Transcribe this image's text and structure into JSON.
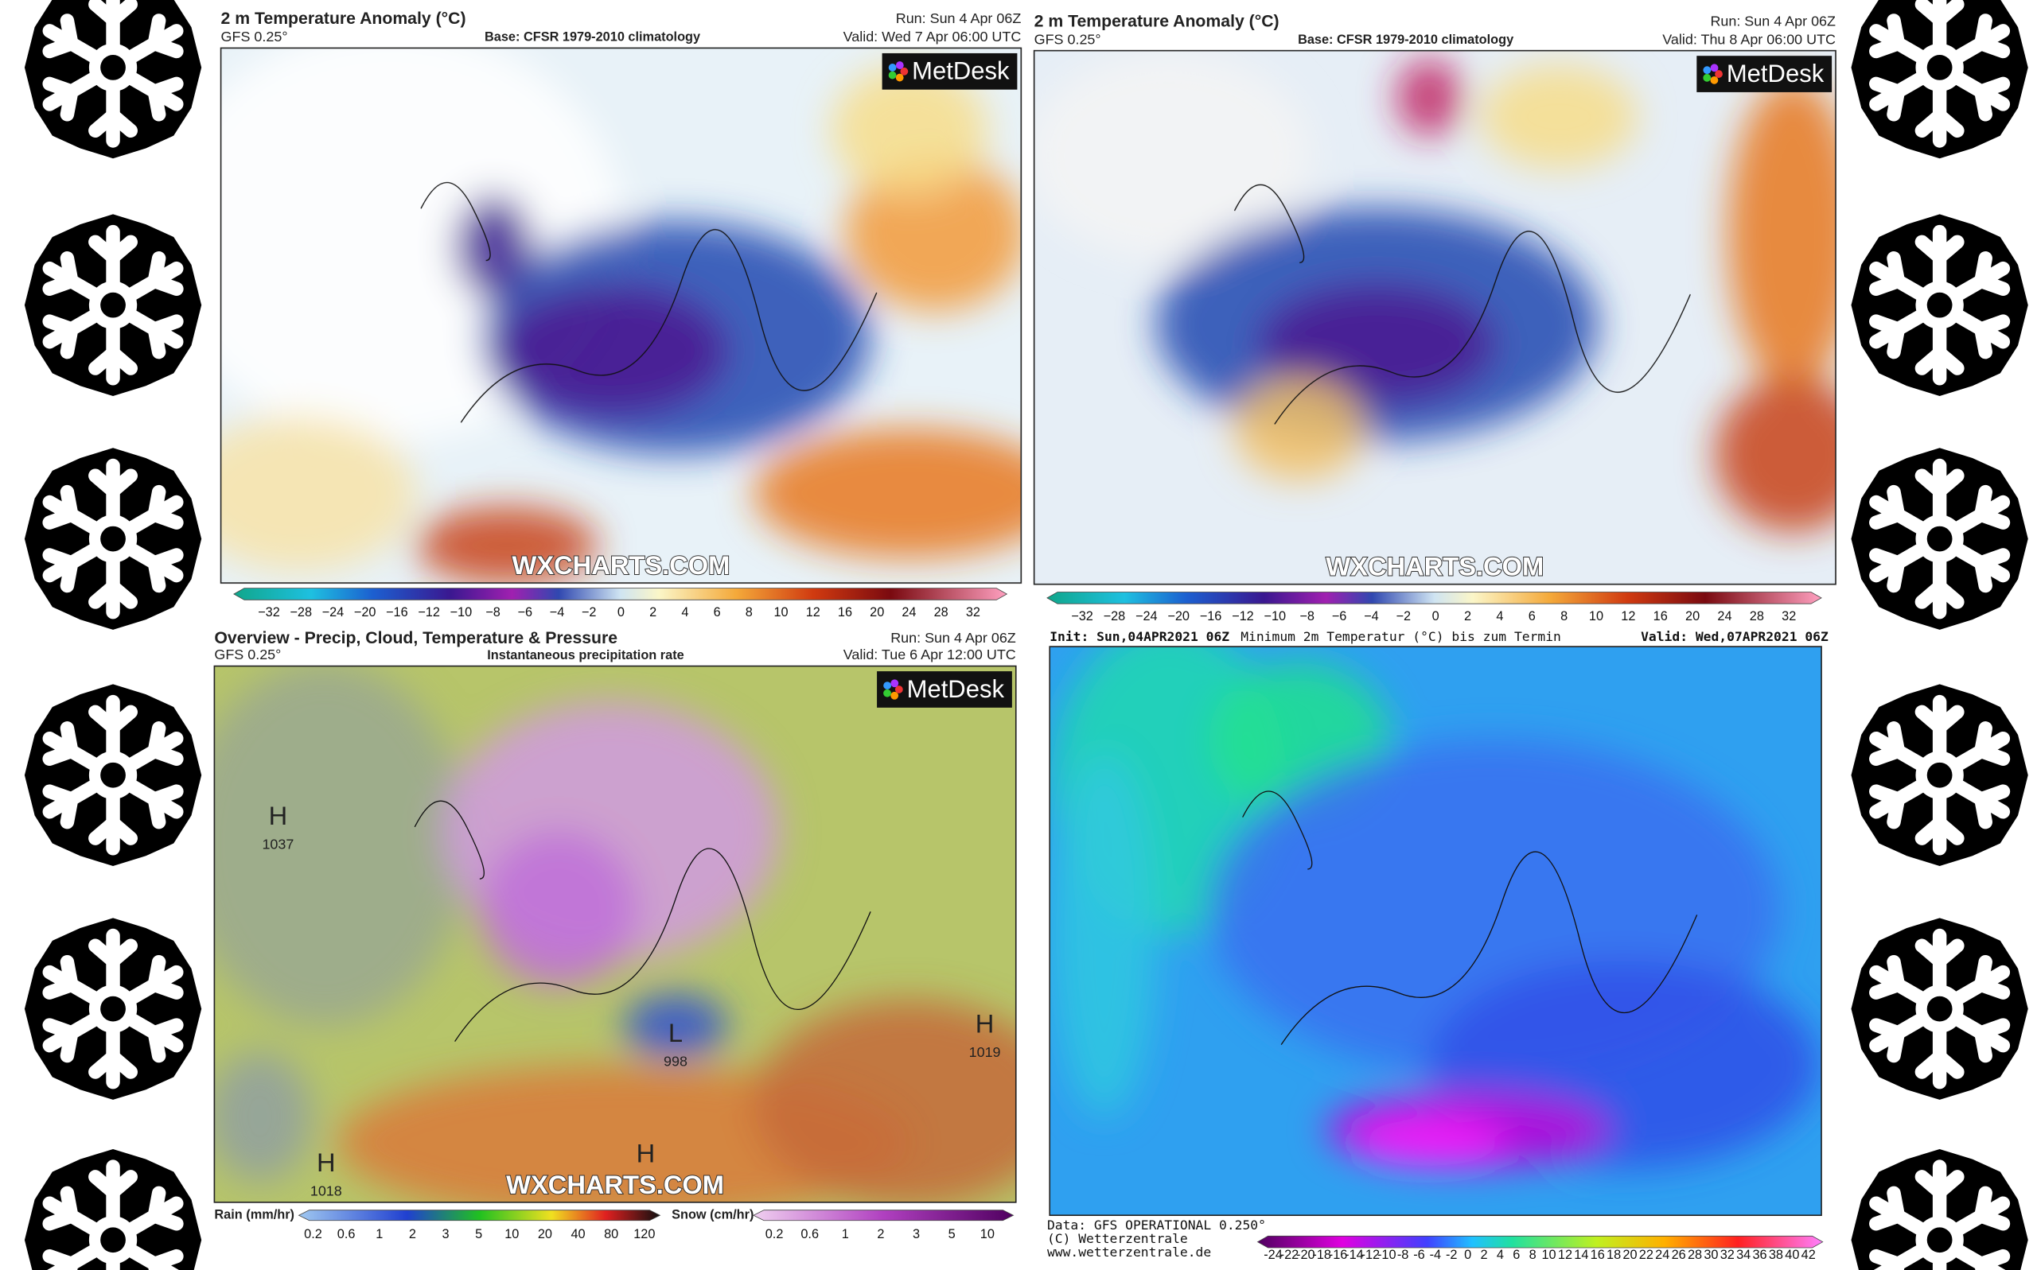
{
  "panels": [
    {
      "title": "2 m Temperature Anomaly (°C)",
      "model": "GFS 0.25°",
      "base": "Base: CFSR 1979-2010 climatology",
      "run": "Run: Sun 4 Apr 06Z",
      "valid": "Valid: Wed 7 Apr 06:00 UTC",
      "logo": "MetDesk",
      "watermark": "WXCHARTS.COM",
      "scale": [
        "−32",
        "−28",
        "−24",
        "−20",
        "−16",
        "−12",
        "−10",
        "−8",
        "−6",
        "−4",
        "−2",
        "0",
        "2",
        "4",
        "6",
        "8",
        "10",
        "12",
        "16",
        "20",
        "24",
        "28",
        "32"
      ]
    },
    {
      "title": "2 m Temperature Anomaly (°C)",
      "model": "GFS 0.25°",
      "base": "Base: CFSR 1979-2010 climatology",
      "run": "Run: Sun 4 Apr 06Z",
      "valid": "Valid: Thu 8 Apr 06:00 UTC",
      "logo": "MetDesk",
      "watermark": "WXCHARTS.COM",
      "scale": [
        "−32",
        "−28",
        "−24",
        "−20",
        "−16",
        "−12",
        "−10",
        "−8",
        "−6",
        "−4",
        "−2",
        "0",
        "2",
        "4",
        "6",
        "8",
        "10",
        "12",
        "16",
        "20",
        "24",
        "28",
        "32"
      ]
    },
    {
      "title": "Overview - Precip, Cloud, Temperature & Pressure",
      "model": "GFS 0.25°",
      "subtitle": "Instantaneous precipitation rate",
      "run": "Run: Sun 4 Apr 06Z",
      "valid": "Valid: Tue 6 Apr 12:00 UTC",
      "logo": "MetDesk",
      "watermark": "WXCHARTS.COM",
      "pressure_labels": [
        {
          "letter": "H",
          "value": "1037"
        },
        {
          "letter": "L",
          "value": "998"
        },
        {
          "letter": "H",
          "value": "1019"
        },
        {
          "letter": "H",
          "value": "1018"
        },
        {
          "letter": "H"
        }
      ],
      "rain_label": "Rain (mm/hr)",
      "rain_scale": [
        "0.2",
        "0.6",
        "1",
        "2",
        "3",
        "5",
        "10",
        "20",
        "40",
        "80",
        "120"
      ],
      "snow_label": "Snow (cm/hr)",
      "snow_scale": [
        "0.2",
        "0.6",
        "1",
        "2",
        "3",
        "5",
        "10"
      ]
    },
    {
      "init": "Init: Sun,04APR2021 06Z",
      "title": "Minimum 2m Temperatur (°C) bis zum Termin",
      "valid": "Valid: Wed,07APR2021 06Z",
      "footer": [
        "Data: GFS OPERATIONAL 0.250°",
        "(C) Wetterzentrale",
        "www.wetterzentrale.de"
      ],
      "scale": [
        "-24",
        "-22",
        "-20",
        "-18",
        "-16",
        "-14",
        "-12",
        "-10",
        "-8",
        "-6",
        "-4",
        "-2",
        "0",
        "2",
        "4",
        "6",
        "8",
        "10",
        "12",
        "14",
        "16",
        "18",
        "20",
        "22",
        "24",
        "26",
        "28",
        "30",
        "32",
        "34",
        "36",
        "38",
        "40",
        "42"
      ]
    }
  ]
}
